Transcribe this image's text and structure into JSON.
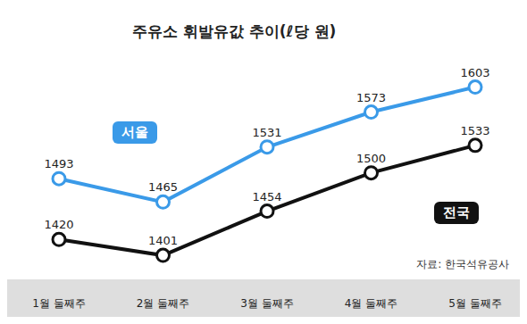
{
  "chart_data": {
    "type": "line",
    "title": "주유소 휘발유값 추이(ℓ당 원)",
    "source": "자료: 한국석유공사",
    "categories": [
      "1월 둘째주",
      "2월 둘째주",
      "3월 둘째주",
      "4월 둘째주",
      "5월 둘째주"
    ],
    "series": [
      {
        "name": "서울",
        "color": "#3a9ae8",
        "values": [
          1493,
          1465,
          1531,
          1573,
          1603
        ]
      },
      {
        "name": "전국",
        "color": "#111111",
        "values": [
          1420,
          1401,
          1454,
          1500,
          1533
        ]
      }
    ],
    "ylim": [
      1370,
      1640
    ],
    "data_labels": true,
    "marker": "circle",
    "grid": false,
    "tick_labels": "x"
  }
}
